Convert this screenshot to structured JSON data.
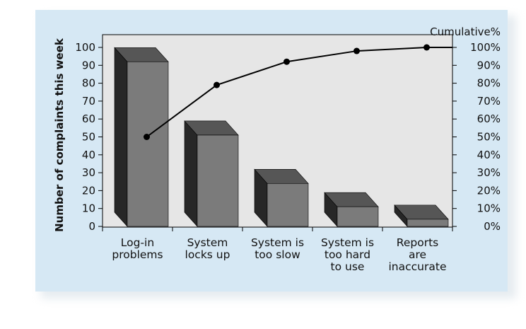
{
  "chart_data": {
    "type": "bar",
    "subtype": "pareto",
    "categories": [
      "Log-in problems",
      "System locks up",
      "System is too slow",
      "System is too hard to use",
      "Reports are inaccurate"
    ],
    "category_label_lines": [
      [
        "Log-in",
        "problems"
      ],
      [
        "System",
        "locks up"
      ],
      [
        "System is",
        "too slow"
      ],
      [
        "System is",
        "too hard",
        "to use"
      ],
      [
        "Reports",
        "are",
        "inaccurate"
      ]
    ],
    "values": [
      92,
      51,
      24,
      11,
      4
    ],
    "cumulative_percent": [
      50,
      79,
      92,
      98,
      100
    ],
    "ylabel": "Number of complaints this week",
    "y2label": "Cumulative%",
    "ylim": [
      0,
      100
    ],
    "y2lim": [
      0,
      100
    ],
    "yticks": [
      "0",
      "10",
      "20",
      "30",
      "40",
      "50",
      "60",
      "70",
      "80",
      "90",
      "100"
    ],
    "y2ticks": [
      "0%",
      "10%",
      "20%",
      "30%",
      "40%",
      "50%",
      "60%",
      "70%",
      "80%",
      "90%",
      "100%"
    ],
    "grid": false,
    "colors": {
      "bar_front": "#7b7b7b",
      "bar_top": "#565656",
      "bar_side": "#272727",
      "plot_bg": "#e6e6e6",
      "line": "#000000"
    }
  }
}
